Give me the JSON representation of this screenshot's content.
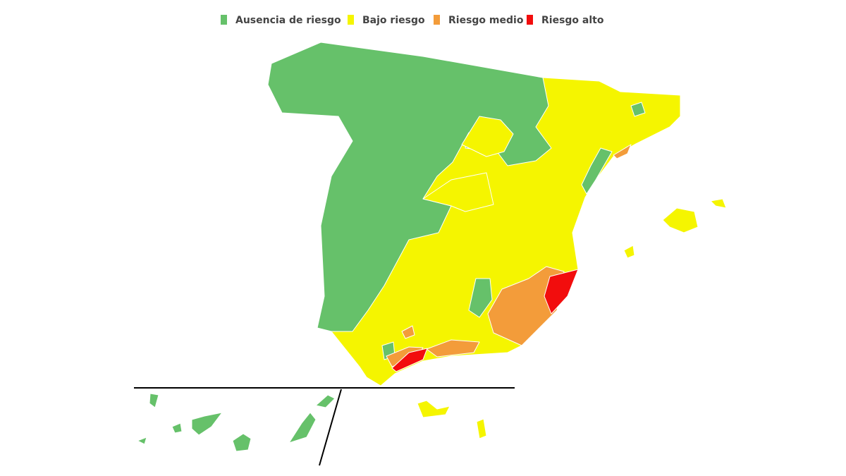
{
  "legend": {
    "items": [
      {
        "label": "Ausencia de riesgo",
        "color": "#66c16a"
      },
      {
        "label": "Bajo riesgo",
        "color": "#f5f500"
      },
      {
        "label": "Riesgo medio",
        "color": "#f39c3a"
      },
      {
        "label": "Riesgo alto",
        "color": "#f20d0d"
      }
    ]
  }
}
